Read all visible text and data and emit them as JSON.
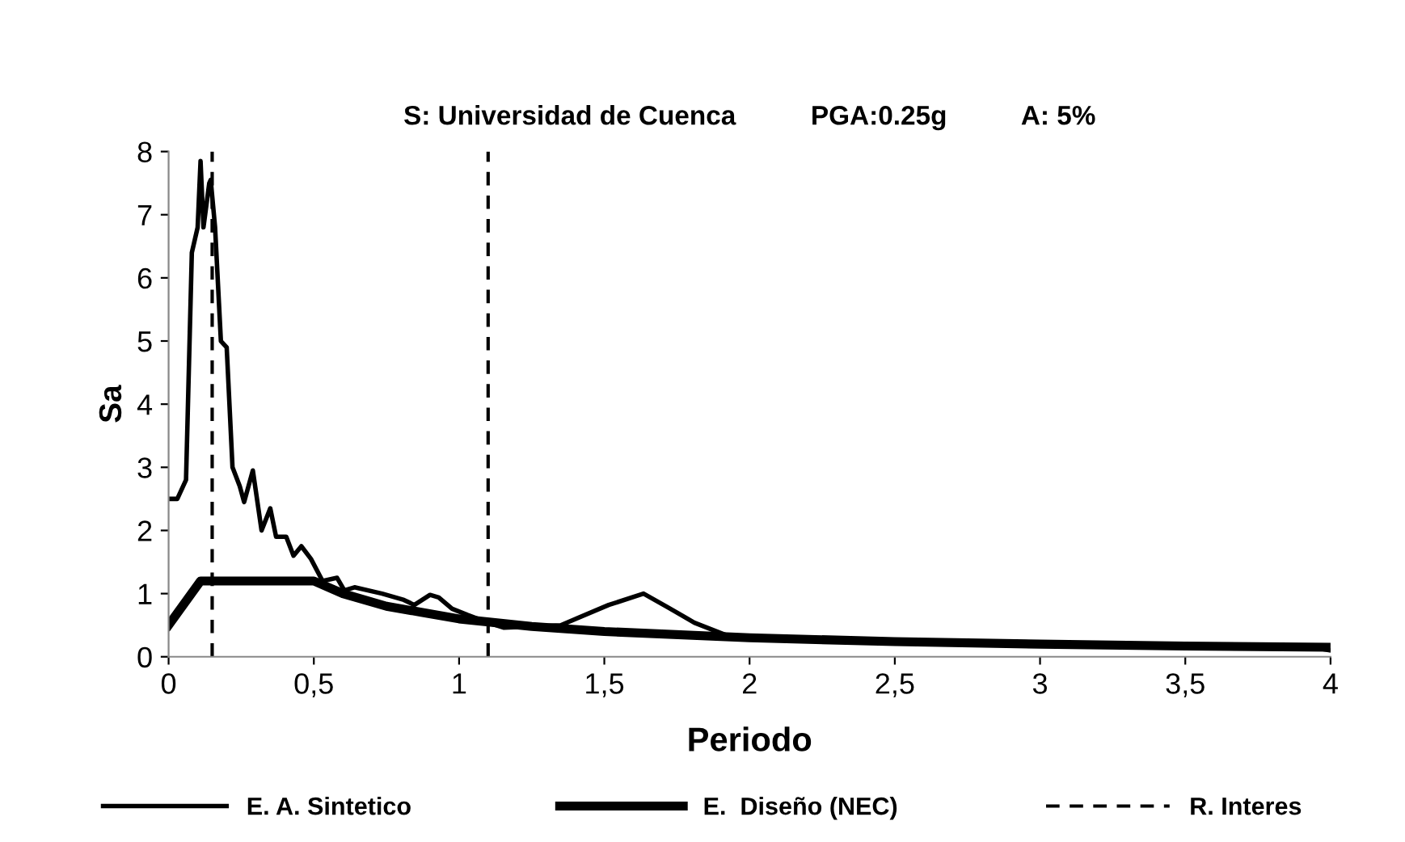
{
  "chart_data": {
    "type": "line",
    "title": "S: Universidad de Cuenca          PGA:0.25g          A: 5%",
    "xlabel": "Periodo",
    "ylabel": "Sa",
    "series": [
      {
        "name": "E. A. Sintetico",
        "color": "#000000",
        "x": [
          0,
          0.03,
          0.06,
          0.08,
          0.1,
          0.11,
          0.12,
          0.14,
          0.145,
          0.16,
          0.18,
          0.2,
          0.22,
          0.245,
          0.26,
          0.29,
          0.32,
          0.35,
          0.37,
          0.405,
          0.43,
          0.457,
          0.49,
          0.53,
          0.58,
          0.605,
          0.64,
          0.735,
          0.81,
          0.846,
          0.9,
          0.93,
          0.976,
          1.03,
          1.1,
          1.155,
          1.35,
          1.515,
          1.635,
          1.72,
          1.81,
          1.92,
          2.5,
          3,
          3.5,
          3.95,
          4
        ],
        "values": [
          2.5,
          2.5,
          2.8,
          6.4,
          6.8,
          7.85,
          6.8,
          7.5,
          7.55,
          6.8,
          5.0,
          4.9,
          3.0,
          2.7,
          2.45,
          2.95,
          2.0,
          2.35,
          1.9,
          1.9,
          1.6,
          1.75,
          1.55,
          1.2,
          1.25,
          1.05,
          1.1,
          1.0,
          0.9,
          0.82,
          0.98,
          0.94,
          0.76,
          0.66,
          0.54,
          0.46,
          0.5,
          0.82,
          1.0,
          0.78,
          0.54,
          0.34,
          0.24,
          0.2,
          0.17,
          0.14,
          0.1
        ]
      },
      {
        "name": "E.  Diseño (NEC)",
        "color": "#000000",
        "x": [
          0,
          0.11,
          0.5,
          0.6,
          0.75,
          1,
          1.25,
          1.5,
          2,
          2.5,
          3,
          3.5,
          4
        ],
        "values": [
          0.5,
          1.2,
          1.2,
          1.0,
          0.8,
          0.6,
          0.48,
          0.4,
          0.3,
          0.24,
          0.2,
          0.17,
          0.15
        ]
      },
      {
        "name": "R. Interes",
        "color": "#000000",
        "line_style": "dashed",
        "x": [
          0.15,
          0.15,
          null,
          1.1,
          1.1
        ],
        "values": [
          0,
          8,
          null,
          0,
          8
        ]
      }
    ],
    "xlim": [
      0,
      4
    ],
    "ylim": [
      0,
      8
    ],
    "xticks": [
      0,
      {
        "value": 0.5,
        "label": "0,5"
      },
      1,
      {
        "value": 1.5,
        "label": "1,5"
      },
      2,
      {
        "value": 2.5,
        "label": "2,5"
      },
      3,
      {
        "value": 3.5,
        "label": "3,5"
      },
      4
    ],
    "yticks": [
      0,
      1,
      2,
      3,
      4,
      5,
      6,
      7,
      8
    ],
    "grid": false,
    "legend": "bottom",
    "marker": "none",
    "line_style": "solid"
  }
}
